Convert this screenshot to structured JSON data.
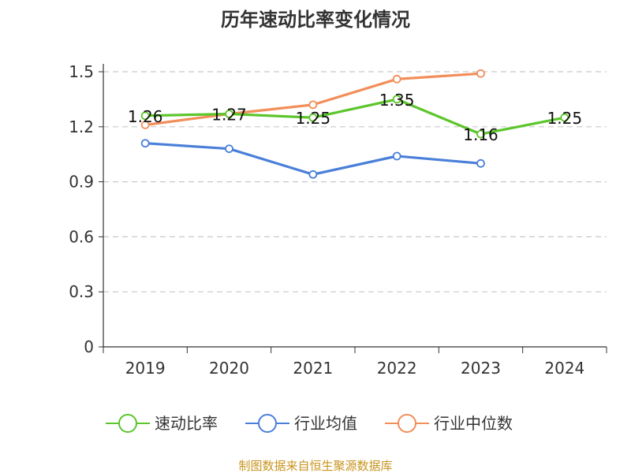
{
  "chart_data": {
    "type": "line",
    "title": "历年速动比率变化情况",
    "categories": [
      "2019",
      "2020",
      "2021",
      "2022",
      "2023",
      "2024"
    ],
    "yticks": [
      "0",
      "0.3",
      "0.6",
      "0.9",
      "1.2",
      "1.5"
    ],
    "ylim": [
      0,
      1.5
    ],
    "grid": true,
    "legend_position": "bottom",
    "series": [
      {
        "name": "速动比率",
        "color": "#5cc52b",
        "values": [
          1.26,
          1.27,
          1.25,
          1.35,
          1.16,
          1.25
        ],
        "labels": [
          "1.26",
          "1.27",
          "1.25",
          "1.35",
          "1.16",
          "1.25"
        ]
      },
      {
        "name": "行业均值",
        "color": "#4a7fd9",
        "values": [
          1.11,
          1.08,
          0.94,
          1.04,
          1.0,
          null
        ]
      },
      {
        "name": "行业中位数",
        "color": "#f28e5a",
        "values": [
          1.21,
          1.27,
          1.32,
          1.46,
          1.49,
          null
        ]
      }
    ]
  },
  "footer": {
    "source": "制图数据来自恒生聚源数据库"
  }
}
